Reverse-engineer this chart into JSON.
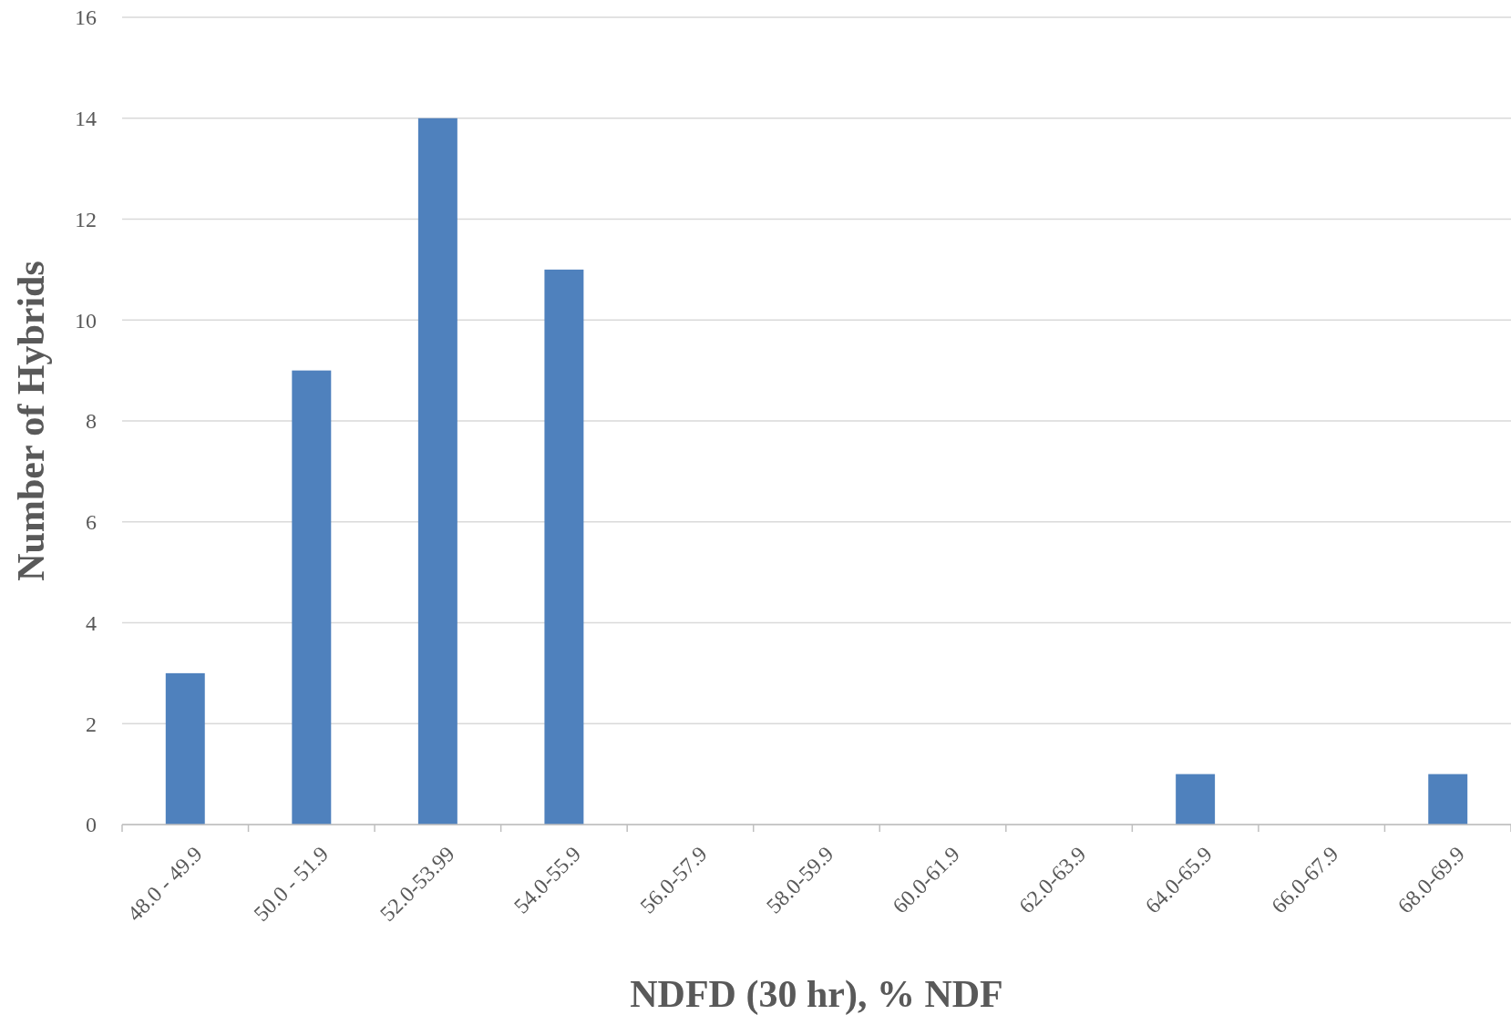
{
  "chart_data": {
    "type": "bar",
    "xlabel": "NDFD (30 hr), % NDF",
    "ylabel": "Number of Hybrids",
    "categories": [
      "48.0 - 49.9",
      "50.0 - 51.9",
      "52.0-53.99",
      "54.0-55.9",
      "56.0-57.9",
      "58.0-59.9",
      "60.0-61.9",
      "62.0-63.9",
      "64.0-65.9",
      "66.0-67.9",
      "68.0-69.9"
    ],
    "values": [
      3,
      9,
      14,
      11,
      0,
      0,
      0,
      0,
      1,
      0,
      1
    ],
    "color": "#4f81bd",
    "ylim": [
      0,
      16
    ],
    "yticks": [
      0,
      2,
      4,
      6,
      8,
      10,
      12,
      14,
      16
    ],
    "grid": "y"
  }
}
